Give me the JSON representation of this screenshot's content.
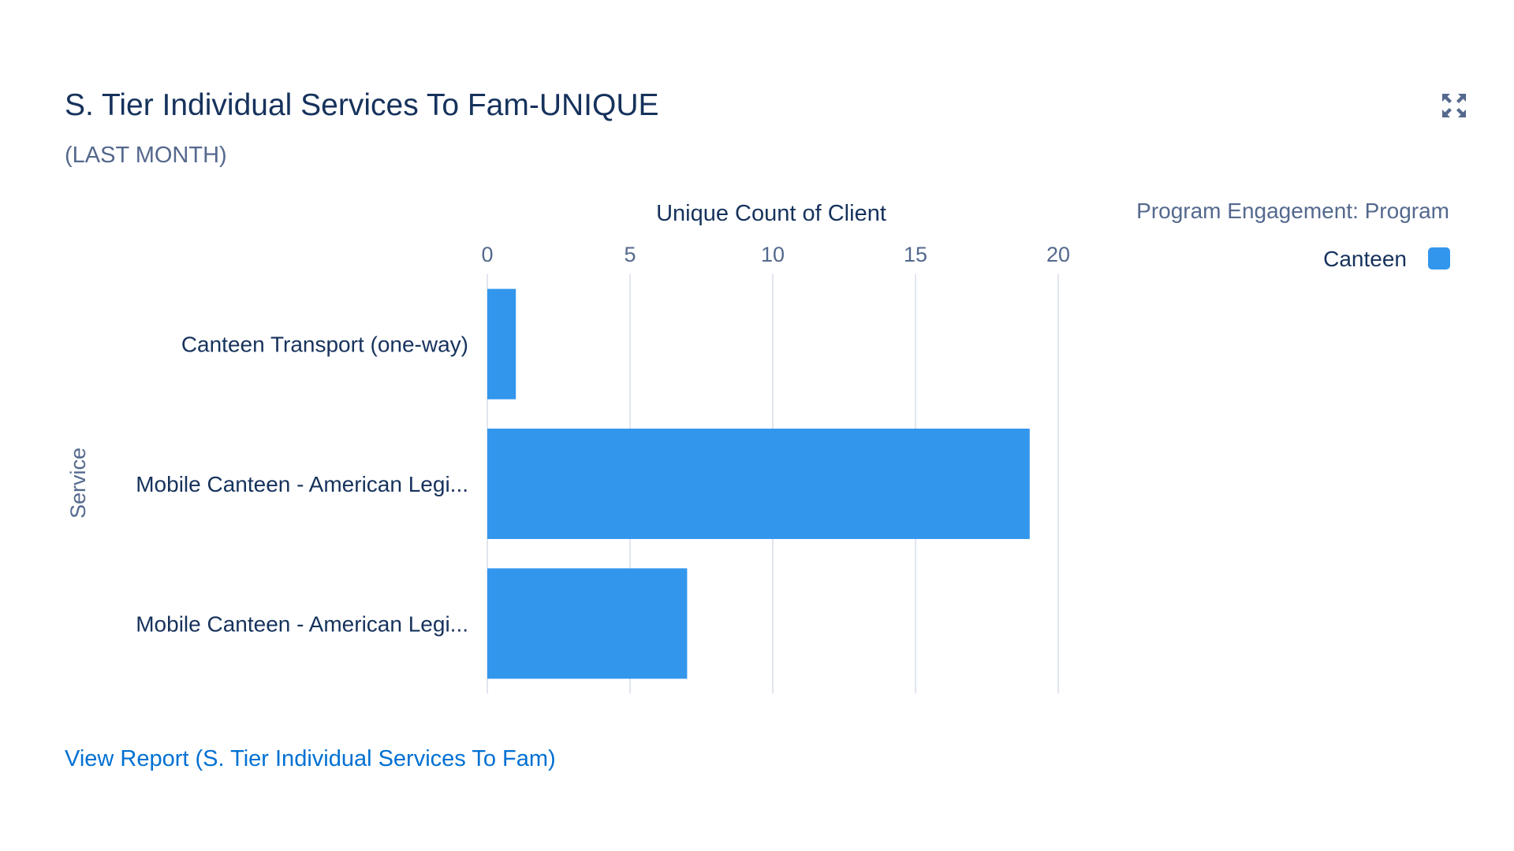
{
  "header": {
    "title": "S. Tier Individual Services To Fam-UNIQUE",
    "subtitle": "(LAST MONTH)",
    "expand_icon": "expand-icon"
  },
  "footer": {
    "view_report_label": "View Report (S. Tier Individual Services To Fam)"
  },
  "chart_data": {
    "type": "bar",
    "orientation": "horizontal",
    "xlabel": "Unique Count of Client",
    "ylabel": "Service",
    "xlim": [
      0,
      20
    ],
    "xticks": [
      "0",
      "5",
      "10",
      "15",
      "20"
    ],
    "categories": [
      "Canteen Transport (one-way)",
      "Mobile Canteen - American Legi...",
      "Mobile Canteen - American Legi..."
    ],
    "series": [
      {
        "name": "Canteen",
        "values": [
          1,
          19,
          7
        ],
        "color": "#3296ed"
      }
    ],
    "legend_title": "Program Engagement: Program",
    "legend_position": "top-right",
    "grid": true
  }
}
